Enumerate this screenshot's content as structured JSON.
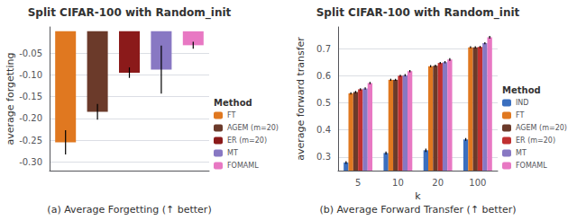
{
  "chart_data": [
    {
      "type": "bar",
      "title": "Split CIFAR-100 with Random_init",
      "ylabel": "average forgetting",
      "caption": "(a) Average Forgetting (↑ better)",
      "categories": [
        "FT",
        "AGEM (m=20)",
        "ER (m=20)",
        "MT",
        "FOMAML"
      ],
      "values": [
        -0.255,
        -0.185,
        -0.095,
        -0.088,
        -0.032
      ],
      "errors": [
        0.028,
        0.018,
        0.012,
        0.055,
        0.008
      ],
      "colors": [
        "#E07820",
        "#6B3A2A",
        "#8B1A1A",
        "#8878C3",
        "#E878C3"
      ],
      "ylim": [
        -0.32,
        0.01
      ],
      "yticks": [
        {
          "value": -0.3,
          "label": "-0.30"
        },
        -0.25,
        {
          "value": -0.2,
          "label": "-0.20"
        },
        -0.15,
        {
          "value": -0.1,
          "label": "-0.10"
        },
        -0.05
      ],
      "grid": true,
      "legend": "lower right",
      "legend_title": "Method",
      "tick_labels": "y"
    },
    {
      "type": "bar",
      "title": "Split CIFAR-100 with Random_init",
      "ylabel": "average forward transfer",
      "xlabel": "k",
      "caption": "(b) Average Forward Transfer (↑ better)",
      "categories": [
        "5",
        "10",
        "20",
        "100"
      ],
      "series": [
        {
          "name": "IND",
          "color": "#3A6FBF",
          "values": [
            0.28,
            0.315,
            0.325,
            0.365
          ],
          "errors": [
            0.005,
            0.005,
            0.006,
            0.005
          ]
        },
        {
          "name": "FT",
          "color": "#E07820",
          "values": [
            0.535,
            0.585,
            0.635,
            0.705
          ],
          "errors": [
            0.004,
            0.004,
            0.004,
            0.004
          ]
        },
        {
          "name": "AGEM (m=20)",
          "color": "#6B3A2A",
          "values": [
            0.54,
            0.585,
            0.637,
            0.705
          ],
          "errors": [
            0.004,
            0.004,
            0.004,
            0.004
          ]
        },
        {
          "name": "ER (m=20)",
          "color": "#C03030",
          "values": [
            0.55,
            0.6,
            0.647,
            0.706
          ],
          "errors": [
            0.004,
            0.004,
            0.004,
            0.004
          ]
        },
        {
          "name": "MT",
          "color": "#8878C3",
          "values": [
            0.553,
            0.602,
            0.65,
            0.72
          ],
          "errors": [
            0.004,
            0.004,
            0.004,
            0.004
          ]
        },
        {
          "name": "FOMAML",
          "color": "#E878C3",
          "values": [
            0.573,
            0.617,
            0.66,
            0.742
          ],
          "errors": [
            0.004,
            0.004,
            0.005,
            0.005
          ]
        }
      ],
      "ylim": [
        0.25,
        0.78
      ],
      "yticks": [
        0.3,
        0.4,
        0.5,
        0.6,
        0.7
      ],
      "grid": true,
      "legend": "lower right",
      "legend_title": "Method"
    }
  ]
}
